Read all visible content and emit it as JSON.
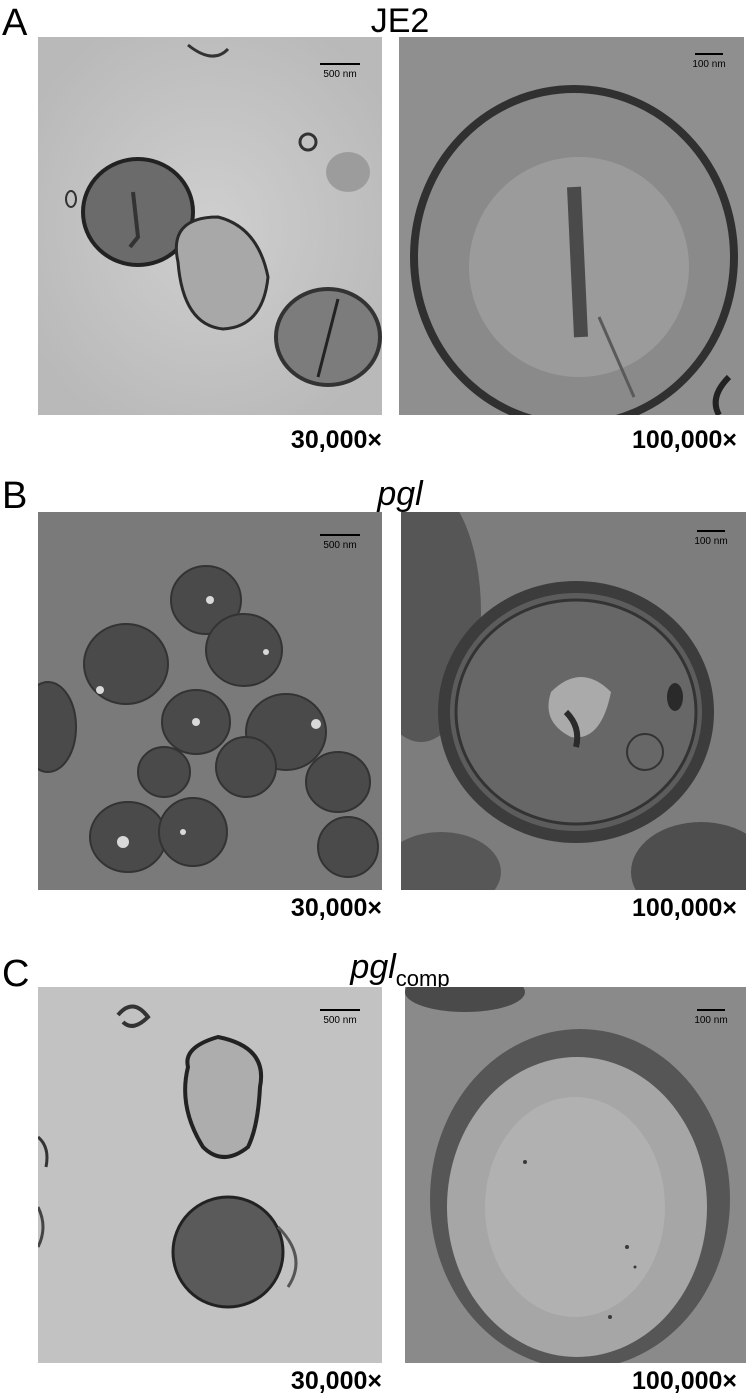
{
  "panels": [
    {
      "letter": "A",
      "title": "JE2",
      "title_sub": "",
      "title_italic": false,
      "left_image": {
        "scale_label": "500 nm",
        "magnification": "30,000×"
      },
      "right_image": {
        "scale_label": "100 nm",
        "magnification": "100,000×"
      }
    },
    {
      "letter": "B",
      "title": "pgl",
      "title_sub": "",
      "title_italic": true,
      "left_image": {
        "scale_label": "500 nm",
        "magnification": "30,000×"
      },
      "right_image": {
        "scale_label": "100 nm",
        "magnification": "100,000×"
      }
    },
    {
      "letter": "C",
      "title": "pgl",
      "title_sub": "comp",
      "title_italic": true,
      "left_image": {
        "scale_label": "500 nm",
        "magnification": "30,000×"
      },
      "right_image": {
        "scale_label": "100 nm",
        "magnification": "100,000×"
      }
    }
  ]
}
